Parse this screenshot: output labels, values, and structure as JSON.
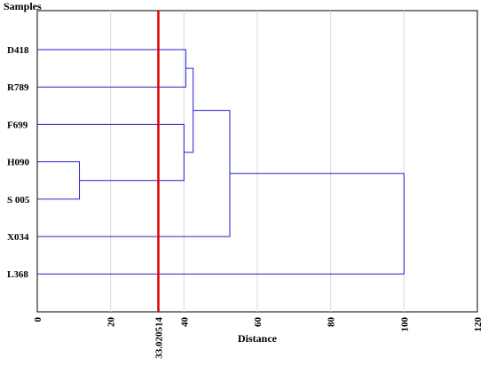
{
  "chart_data": {
    "type": "dendrogram",
    "title": "",
    "xlabel": "Distance",
    "ylabel": "Samples",
    "xlim": [
      0,
      120
    ],
    "x_ticks": [
      "0",
      "20",
      "40",
      "60",
      "80",
      "100",
      "120"
    ],
    "grid": true,
    "samples": [
      "D418",
      "R789",
      "F699",
      "H090",
      "S 005",
      "X034",
      "L368"
    ],
    "merges": [
      {
        "a": "H090",
        "b": "S 005",
        "height": 11.5
      },
      {
        "a": "F699",
        "b": "H090+S 005",
        "height": 40
      },
      {
        "a": "D418",
        "b": "R789",
        "height": 40.5
      },
      {
        "a": "D418+R789",
        "b": "F699+H090+S 005",
        "height": 42.5
      },
      {
        "a": "D418+R789+F699+H090+S 005",
        "b": "X034",
        "height": 52.5
      },
      {
        "a": "D418+R789+F699+H090+S 005+X034",
        "b": "L368",
        "height": 100
      }
    ],
    "cutoff": {
      "value": 33.020514,
      "label": "33.020514",
      "color": "#e00000"
    },
    "link_color": "#2222cc"
  }
}
